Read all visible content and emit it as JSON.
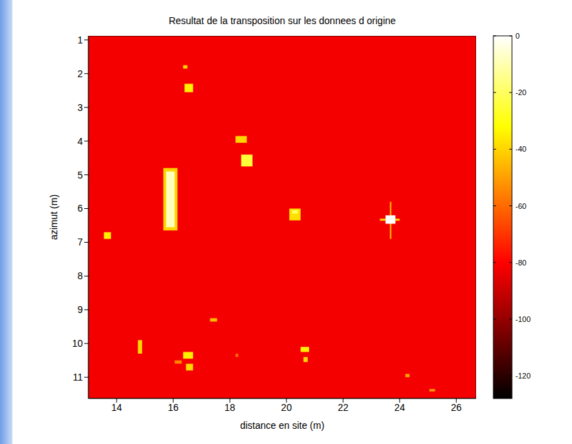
{
  "chart_data": {
    "type": "heatmap",
    "title": "Resultat de la transposition sur les donnees d origine",
    "x_label": "distance en site (m)",
    "y_label": "azimut (m)",
    "xlim": [
      13,
      26.7
    ],
    "ylim": [
      0.88,
      11.63
    ],
    "xticks": [
      14,
      16,
      18,
      20,
      22,
      24,
      26
    ],
    "yticks": [
      1,
      2,
      3,
      4,
      5,
      6,
      7,
      8,
      9,
      10,
      11
    ],
    "background": -82,
    "cells": [
      {
        "x": [
          16.35,
          16.5
        ],
        "y": [
          1.75,
          1.85
        ],
        "value": -40
      },
      {
        "x": [
          16.4,
          16.7
        ],
        "y": [
          2.3,
          2.55
        ],
        "value": -35
      },
      {
        "x": [
          18.2,
          18.6
        ],
        "y": [
          3.85,
          4.05
        ],
        "value": -40
      },
      {
        "x": [
          18.4,
          18.8
        ],
        "y": [
          4.4,
          4.75
        ],
        "value": -25
      },
      {
        "x": [
          15.65,
          16.15
        ],
        "y": [
          4.8,
          6.65
        ],
        "value": -40
      },
      {
        "x": [
          15.75,
          16.05
        ],
        "y": [
          4.9,
          6.55
        ],
        "value": -8
      },
      {
        "x": [
          13.55,
          13.8
        ],
        "y": [
          6.7,
          6.9
        ],
        "value": -35
      },
      {
        "x": [
          20.1,
          20.5
        ],
        "y": [
          6.0,
          6.35
        ],
        "value": -38
      },
      {
        "x": [
          20.2,
          20.4
        ],
        "y": [
          6.05,
          6.15
        ],
        "value": -20
      },
      {
        "x": [
          23.3,
          24.0
        ],
        "y": [
          6.3,
          6.36
        ],
        "value": -40
      },
      {
        "x": [
          23.65,
          23.71
        ],
        "y": [
          5.8,
          6.9
        ],
        "value": -50
      },
      {
        "x": [
          23.5,
          23.85
        ],
        "y": [
          6.2,
          6.45
        ],
        "value": 0
      },
      {
        "x": [
          17.3,
          17.55
        ],
        "y": [
          9.25,
          9.35
        ],
        "value": -45
      },
      {
        "x": [
          14.75,
          14.9
        ],
        "y": [
          9.9,
          10.3
        ],
        "value": -40
      },
      {
        "x": [
          16.35,
          16.7
        ],
        "y": [
          10.25,
          10.45
        ],
        "value": -35
      },
      {
        "x": [
          16.45,
          16.7
        ],
        "y": [
          10.6,
          10.8
        ],
        "value": -40
      },
      {
        "x": [
          16.05,
          16.3
        ],
        "y": [
          10.5,
          10.6
        ],
        "value": -55
      },
      {
        "x": [
          18.2,
          18.3
        ],
        "y": [
          10.3,
          10.4
        ],
        "value": -60
      },
      {
        "x": [
          20.5,
          20.8
        ],
        "y": [
          10.1,
          10.25
        ],
        "value": -35
      },
      {
        "x": [
          20.6,
          20.75
        ],
        "y": [
          10.4,
          10.55
        ],
        "value": -40
      },
      {
        "x": [
          24.2,
          24.35
        ],
        "y": [
          10.9,
          11.0
        ],
        "value": -50
      },
      {
        "x": [
          25.05,
          25.25
        ],
        "y": [
          11.35,
          11.42
        ],
        "value": -50
      }
    ],
    "colorbar_range": [
      -128,
      0
    ],
    "colorbar_ticks": [
      0,
      -20,
      -40,
      -60,
      -80,
      -100,
      -120
    ]
  }
}
